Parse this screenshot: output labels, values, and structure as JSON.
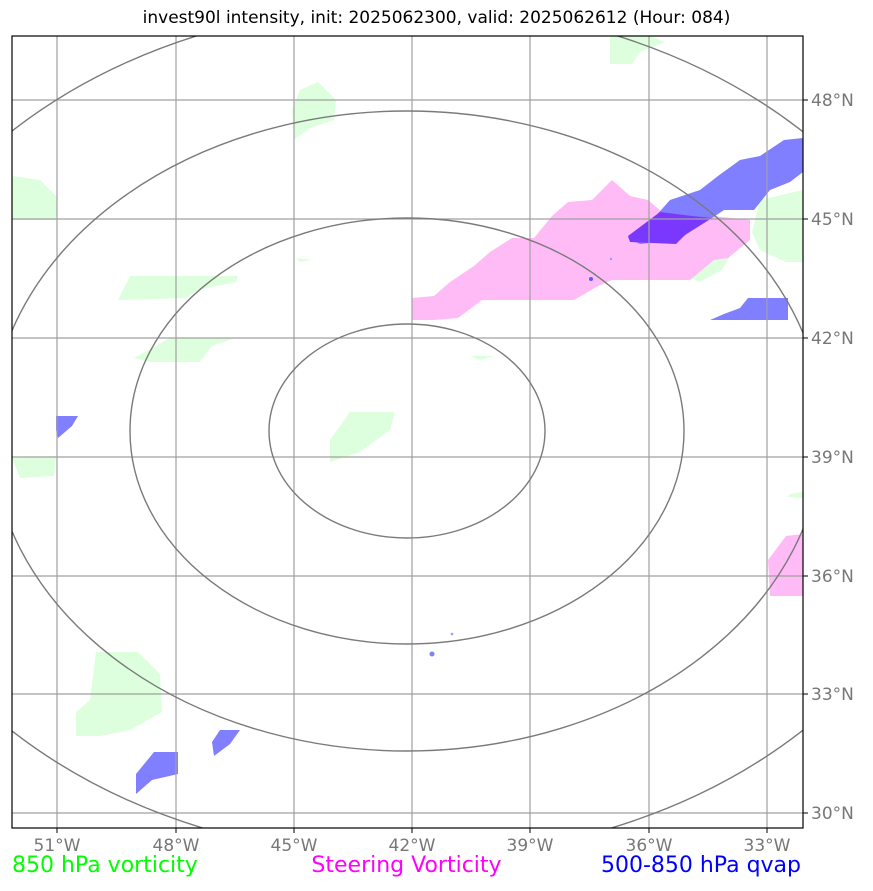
{
  "title": "invest90l intensity, init: 2025062300, valid: 2025062612 (Hour: 084)",
  "lon_ticks": [
    "51°W",
    "48°W",
    "45°W",
    "42°W",
    "39°W",
    "36°W",
    "33°W"
  ],
  "lat_ticks": [
    "48°N",
    "45°N",
    "42°N",
    "39°N",
    "36°N",
    "33°N",
    "30°N"
  ],
  "legend": {
    "vort850": {
      "label": "850 hPa vorticity",
      "color": "#00ff00"
    },
    "steering": {
      "label": "Steering Vorticity",
      "color": "#ff00ff"
    },
    "qvap": {
      "label": "500-850 hPa qvap",
      "color": "#0000ff"
    }
  },
  "colors": {
    "vort850_fill": "#ddffdd",
    "steering_fill": "#ffbbf5",
    "qvap_fill": "#7f7fff",
    "qvap_dark": "#7a38ff",
    "grid": "#9a9a9a",
    "rings": "#7a7a7a"
  }
}
